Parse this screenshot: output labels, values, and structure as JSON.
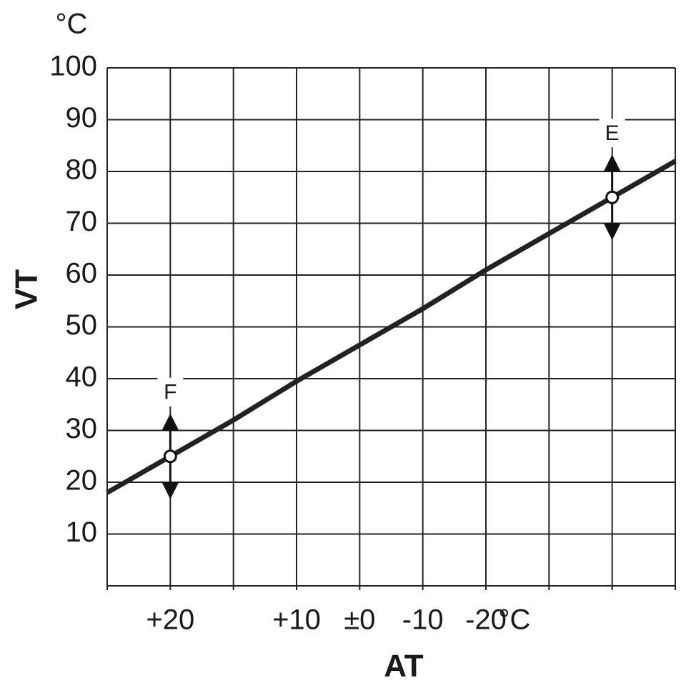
{
  "chart_data": {
    "type": "line",
    "y_unit": "°C",
    "ylabel": "VT",
    "xlabel": "AT",
    "x_unit": "°C",
    "categories": [
      null,
      "+20",
      null,
      "+10",
      "±0",
      "-10",
      "-20",
      null,
      null,
      null
    ],
    "ylim": [
      0,
      100
    ],
    "yticks": [
      10,
      20,
      30,
      40,
      50,
      60,
      70,
      80,
      90,
      100
    ],
    "grid": true,
    "line": {
      "color": "#222222",
      "values": [
        18,
        25,
        32,
        39.5,
        46.5,
        53.5,
        61,
        68,
        75,
        82
      ]
    },
    "markers": {
      "values": [
        null,
        25,
        null,
        null,
        null,
        null,
        null,
        null,
        75,
        null
      ],
      "labels": [
        null,
        "F",
        null,
        null,
        null,
        null,
        null,
        null,
        "E",
        null
      ]
    }
  }
}
